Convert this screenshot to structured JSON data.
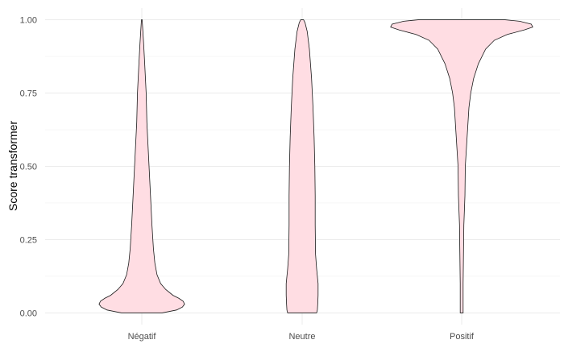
{
  "chart_data": {
    "type": "violin",
    "title": "",
    "xlabel": "",
    "ylabel": "Score transformer",
    "ylim": [
      -0.04,
      1.04
    ],
    "yticks": [
      0,
      0.25,
      0.5,
      0.75,
      1
    ],
    "ytick_labels": [
      "0.00",
      "0.25",
      "0.50",
      "0.75",
      "1.00"
    ],
    "categories": [
      "Négatif",
      "Neutre",
      "Positif"
    ],
    "fill_color": "#ffdde3",
    "outline_color": "#1a1a1a",
    "grid": true,
    "violins": [
      {
        "category": "Négatif",
        "profile": [
          [
            0.0,
            0.28
          ],
          [
            0.01,
            0.48
          ],
          [
            0.02,
            0.56
          ],
          [
            0.03,
            0.59
          ],
          [
            0.04,
            0.57
          ],
          [
            0.05,
            0.51
          ],
          [
            0.06,
            0.43
          ],
          [
            0.08,
            0.33
          ],
          [
            0.1,
            0.26
          ],
          [
            0.13,
            0.21
          ],
          [
            0.17,
            0.18
          ],
          [
            0.22,
            0.16
          ],
          [
            0.3,
            0.14
          ],
          [
            0.35,
            0.13
          ],
          [
            0.45,
            0.11
          ],
          [
            0.55,
            0.09
          ],
          [
            0.65,
            0.07
          ],
          [
            0.75,
            0.06
          ],
          [
            0.85,
            0.04
          ],
          [
            0.92,
            0.025
          ],
          [
            0.96,
            0.015
          ],
          [
            1.0,
            0.005
          ]
        ]
      },
      {
        "category": "Neutre",
        "profile": [
          [
            0.0,
            0.2
          ],
          [
            0.01,
            0.21
          ],
          [
            0.03,
            0.215
          ],
          [
            0.06,
            0.22
          ],
          [
            0.1,
            0.22
          ],
          [
            0.15,
            0.2
          ],
          [
            0.2,
            0.185
          ],
          [
            0.3,
            0.18
          ],
          [
            0.4,
            0.18
          ],
          [
            0.5,
            0.175
          ],
          [
            0.6,
            0.165
          ],
          [
            0.7,
            0.15
          ],
          [
            0.8,
            0.13
          ],
          [
            0.9,
            0.1
          ],
          [
            0.96,
            0.07
          ],
          [
            0.99,
            0.04
          ],
          [
            1.0,
            0.02
          ]
        ]
      },
      {
        "category": "Positif",
        "profile": [
          [
            0.0,
            0.02
          ],
          [
            0.1,
            0.02
          ],
          [
            0.2,
            0.025
          ],
          [
            0.3,
            0.03
          ],
          [
            0.4,
            0.045
          ],
          [
            0.5,
            0.05
          ],
          [
            0.6,
            0.075
          ],
          [
            0.7,
            0.1
          ],
          [
            0.75,
            0.125
          ],
          [
            0.8,
            0.165
          ],
          [
            0.85,
            0.23
          ],
          [
            0.9,
            0.33
          ],
          [
            0.93,
            0.45
          ],
          [
            0.95,
            0.63
          ],
          [
            0.965,
            0.86
          ],
          [
            0.975,
            0.98
          ],
          [
            0.985,
            0.96
          ],
          [
            0.995,
            0.8
          ],
          [
            1.0,
            0.6
          ]
        ]
      }
    ]
  }
}
